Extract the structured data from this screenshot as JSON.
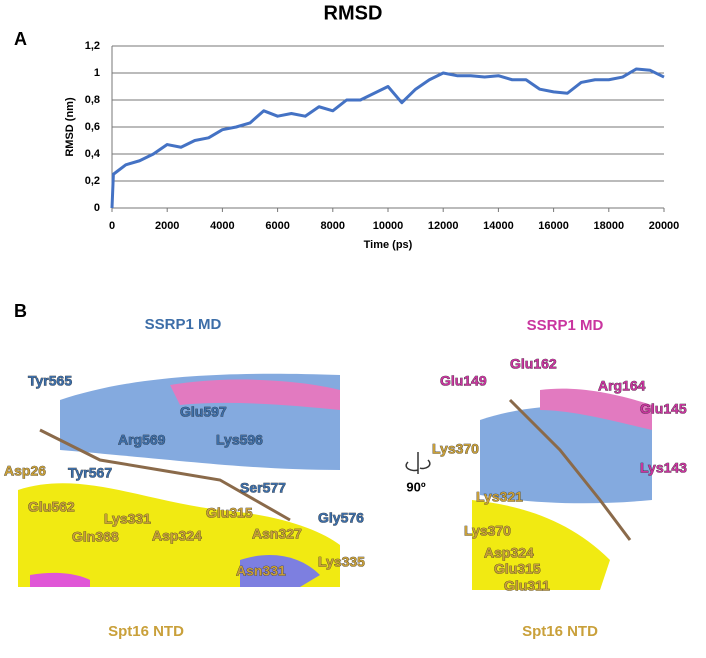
{
  "chart_data": {
    "type": "line",
    "title": "RMSD",
    "xlabel": "Time (ps)",
    "ylabel": "RMSD (nm)",
    "x": [
      0,
      50,
      500,
      1000,
      1500,
      2000,
      2500,
      3000,
      3500,
      4000,
      4500,
      5000,
      5500,
      6000,
      6500,
      7000,
      7500,
      8000,
      8500,
      9000,
      9500,
      10000,
      10500,
      11000,
      11500,
      12000,
      12500,
      13000,
      13500,
      14000,
      14500,
      15000,
      15500,
      16000,
      16500,
      17000,
      17500,
      18000,
      18500,
      19000,
      19500,
      20000
    ],
    "series": [
      {
        "color": "#4472c4",
        "values": [
          0,
          0.25,
          0.32,
          0.35,
          0.4,
          0.47,
          0.45,
          0.5,
          0.52,
          0.58,
          0.6,
          0.63,
          0.72,
          0.68,
          0.7,
          0.68,
          0.75,
          0.72,
          0.8,
          0.8,
          0.85,
          0.9,
          0.78,
          0.88,
          0.95,
          1.0,
          0.98,
          0.98,
          0.97,
          0.98,
          0.95,
          0.95,
          0.88,
          0.86,
          0.85,
          0.93,
          0.95,
          0.95,
          0.97,
          1.03,
          1.02,
          0.97
        ]
      }
    ],
    "xlim": [
      0,
      20000
    ],
    "xticks": [
      0,
      2000,
      4000,
      6000,
      8000,
      10000,
      12000,
      14000,
      16000,
      18000,
      20000
    ],
    "ylim": [
      0,
      1.2
    ],
    "yticks": [
      0,
      {
        "value": 0.2,
        "label": "0,2"
      },
      {
        "value": 0.4,
        "label": "0,4"
      },
      {
        "value": 0.6,
        "label": "0,6"
      },
      {
        "value": 0.8,
        "label": "0,8"
      },
      1,
      {
        "value": 1.2,
        "label": "1,2"
      }
    ],
    "grid": true
  },
  "panels": [
    "A",
    "B"
  ],
  "panel_b": {
    "rotation": "90º",
    "left": {
      "title": "SSRP1 MD",
      "subtitle": "Spt16 NTD",
      "ssrp1_labels": [
        "Tyr565",
        "Glu597",
        "Arg569",
        "Lys596",
        "Tyr567",
        "Ser577",
        "Gly576"
      ],
      "spt16_labels": [
        "Asp26",
        "Glu562",
        "Lys331",
        "Glu315",
        "Gln368",
        "Asp324",
        "Asn327",
        "Asn331",
        "Lys335"
      ]
    },
    "right": {
      "title": "SSRP1 MD",
      "subtitle": "Spt16 NTD",
      "ssrp1_labels": [
        "Glu149",
        "Glu162",
        "Arg164",
        "Glu145",
        "Lys143"
      ],
      "spt16_labels": [
        "Lys370",
        "Lys321",
        "Lys370",
        "Asp324",
        "Glu315",
        "Glu311"
      ]
    }
  }
}
